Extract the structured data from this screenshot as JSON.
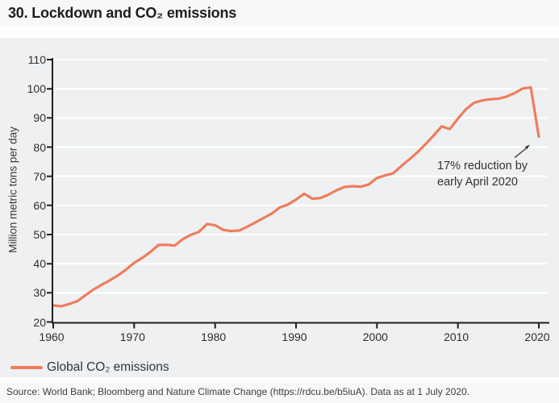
{
  "page": {
    "title": "30. Lockdown and CO₂ emissions"
  },
  "footer": {
    "source": "Source: World Bank; Bloomberg and Nature Climate Change (https://rdcu.be/b5iuA). Data as at 1 July 2020."
  },
  "chart_data": {
    "type": "line",
    "title": "30. Lockdown and CO₂ emissions",
    "xlabel": "",
    "ylabel": "Million metric tons per day",
    "xlim": [
      1960,
      2020
    ],
    "ylim": [
      20,
      110
    ],
    "x_ticks": [
      1960,
      1970,
      1980,
      1990,
      2000,
      2010,
      2020
    ],
    "y_ticks": [
      20,
      30,
      40,
      50,
      60,
      70,
      80,
      90,
      100,
      110
    ],
    "grid": true,
    "gridline_color": "#ffffff",
    "axis_color": "#1f1f1f",
    "legend_position": "bottom-left",
    "x": [
      1960,
      1961,
      1962,
      1963,
      1964,
      1965,
      1966,
      1967,
      1968,
      1969,
      1970,
      1971,
      1972,
      1973,
      1974,
      1975,
      1976,
      1977,
      1978,
      1979,
      1980,
      1981,
      1982,
      1983,
      1984,
      1985,
      1986,
      1987,
      1988,
      1989,
      1990,
      1991,
      1992,
      1993,
      1994,
      1995,
      1996,
      1997,
      1998,
      1999,
      2000,
      2001,
      2002,
      2003,
      2004,
      2005,
      2006,
      2007,
      2008,
      2009,
      2010,
      2011,
      2012,
      2013,
      2014,
      2015,
      2016,
      2017,
      2018,
      2019,
      2020
    ],
    "series": [
      {
        "name": "Global CO₂ emissions",
        "color": "#ef7d5c",
        "values": [
          25.7,
          25.4,
          26.2,
          27.2,
          29.2,
          31.2,
          32.8,
          34.3,
          36.0,
          38.0,
          40.3,
          42.0,
          44.0,
          46.4,
          46.5,
          46.2,
          48.4,
          49.9,
          50.9,
          53.6,
          53.2,
          51.6,
          51.2,
          51.4,
          52.7,
          54.2,
          55.7,
          57.2,
          59.3,
          60.3,
          62.0,
          64.0,
          62.3,
          62.5,
          63.7,
          65.2,
          66.3,
          66.6,
          66.4,
          67.2,
          69.4,
          70.3,
          71.0,
          73.5,
          75.8,
          78.2,
          81.0,
          84.0,
          87.1,
          86.2,
          89.8,
          93.0,
          95.2,
          96.0,
          96.4,
          96.6,
          97.3,
          98.5,
          100.1,
          100.5,
          83.6
        ]
      }
    ],
    "annotation": {
      "lines": [
        "17% reduction by",
        "early April 2020"
      ],
      "arrow_points_to": {
        "year": 2020,
        "value": 83.6
      }
    }
  }
}
